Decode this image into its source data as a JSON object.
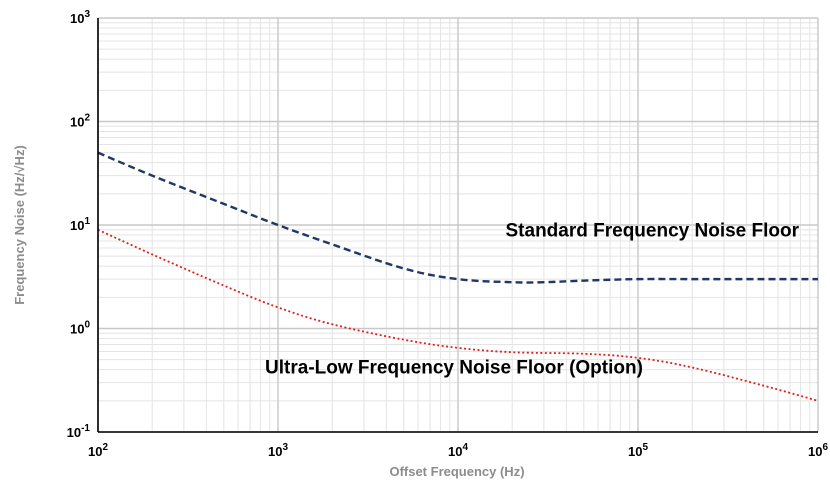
{
  "chart_data": {
    "type": "line",
    "xscale": "log",
    "yscale": "log",
    "xlim": [
      100,
      1000000
    ],
    "ylim": [
      0.1,
      1000
    ],
    "grid": true,
    "xlabel": "Offset Frequency (Hz)",
    "ylabel": "Frequency Noise (Hz/√Hz)",
    "x_ticks": [
      {
        "base": "10",
        "exp": "2"
      },
      {
        "base": "10",
        "exp": "3"
      },
      {
        "base": "10",
        "exp": "4"
      },
      {
        "base": "10",
        "exp": "5"
      },
      {
        "base": "10",
        "exp": "6"
      }
    ],
    "y_ticks": [
      {
        "base": "10",
        "exp": "-1"
      },
      {
        "base": "10",
        "exp": "0"
      },
      {
        "base": "10",
        "exp": "1"
      },
      {
        "base": "10",
        "exp": "2"
      },
      {
        "base": "10",
        "exp": "3"
      }
    ],
    "series": [
      {
        "name": "Standard Frequency Noise Floor",
        "color": "#1f3864",
        "style": "dashed",
        "x": [
          100,
          200,
          500,
          1000,
          2000,
          5000,
          10000,
          20000,
          30000,
          50000,
          100000,
          200000,
          500000,
          1000000
        ],
        "y": [
          50,
          30,
          16,
          10,
          6.5,
          3.8,
          3.0,
          2.8,
          2.8,
          2.9,
          3.0,
          3.0,
          3.0,
          3.0
        ]
      },
      {
        "name": "Ultra-Low Frequency Noise Floor (Option)",
        "color": "#e0201b",
        "style": "dotted",
        "x": [
          100,
          200,
          500,
          1000,
          2000,
          5000,
          10000,
          20000,
          50000,
          100000,
          200000,
          500000,
          1000000
        ],
        "y": [
          9,
          5.2,
          2.6,
          1.6,
          1.1,
          0.78,
          0.65,
          0.59,
          0.57,
          0.52,
          0.42,
          0.28,
          0.2
        ]
      }
    ],
    "annotations": [
      {
        "text": "Standard Frequency Noise Floor",
        "x": 120000,
        "y": 9.0
      },
      {
        "text": "Ultra-Low Frequency Noise Floor (Option)",
        "x": 9500,
        "y": 0.43
      }
    ]
  }
}
